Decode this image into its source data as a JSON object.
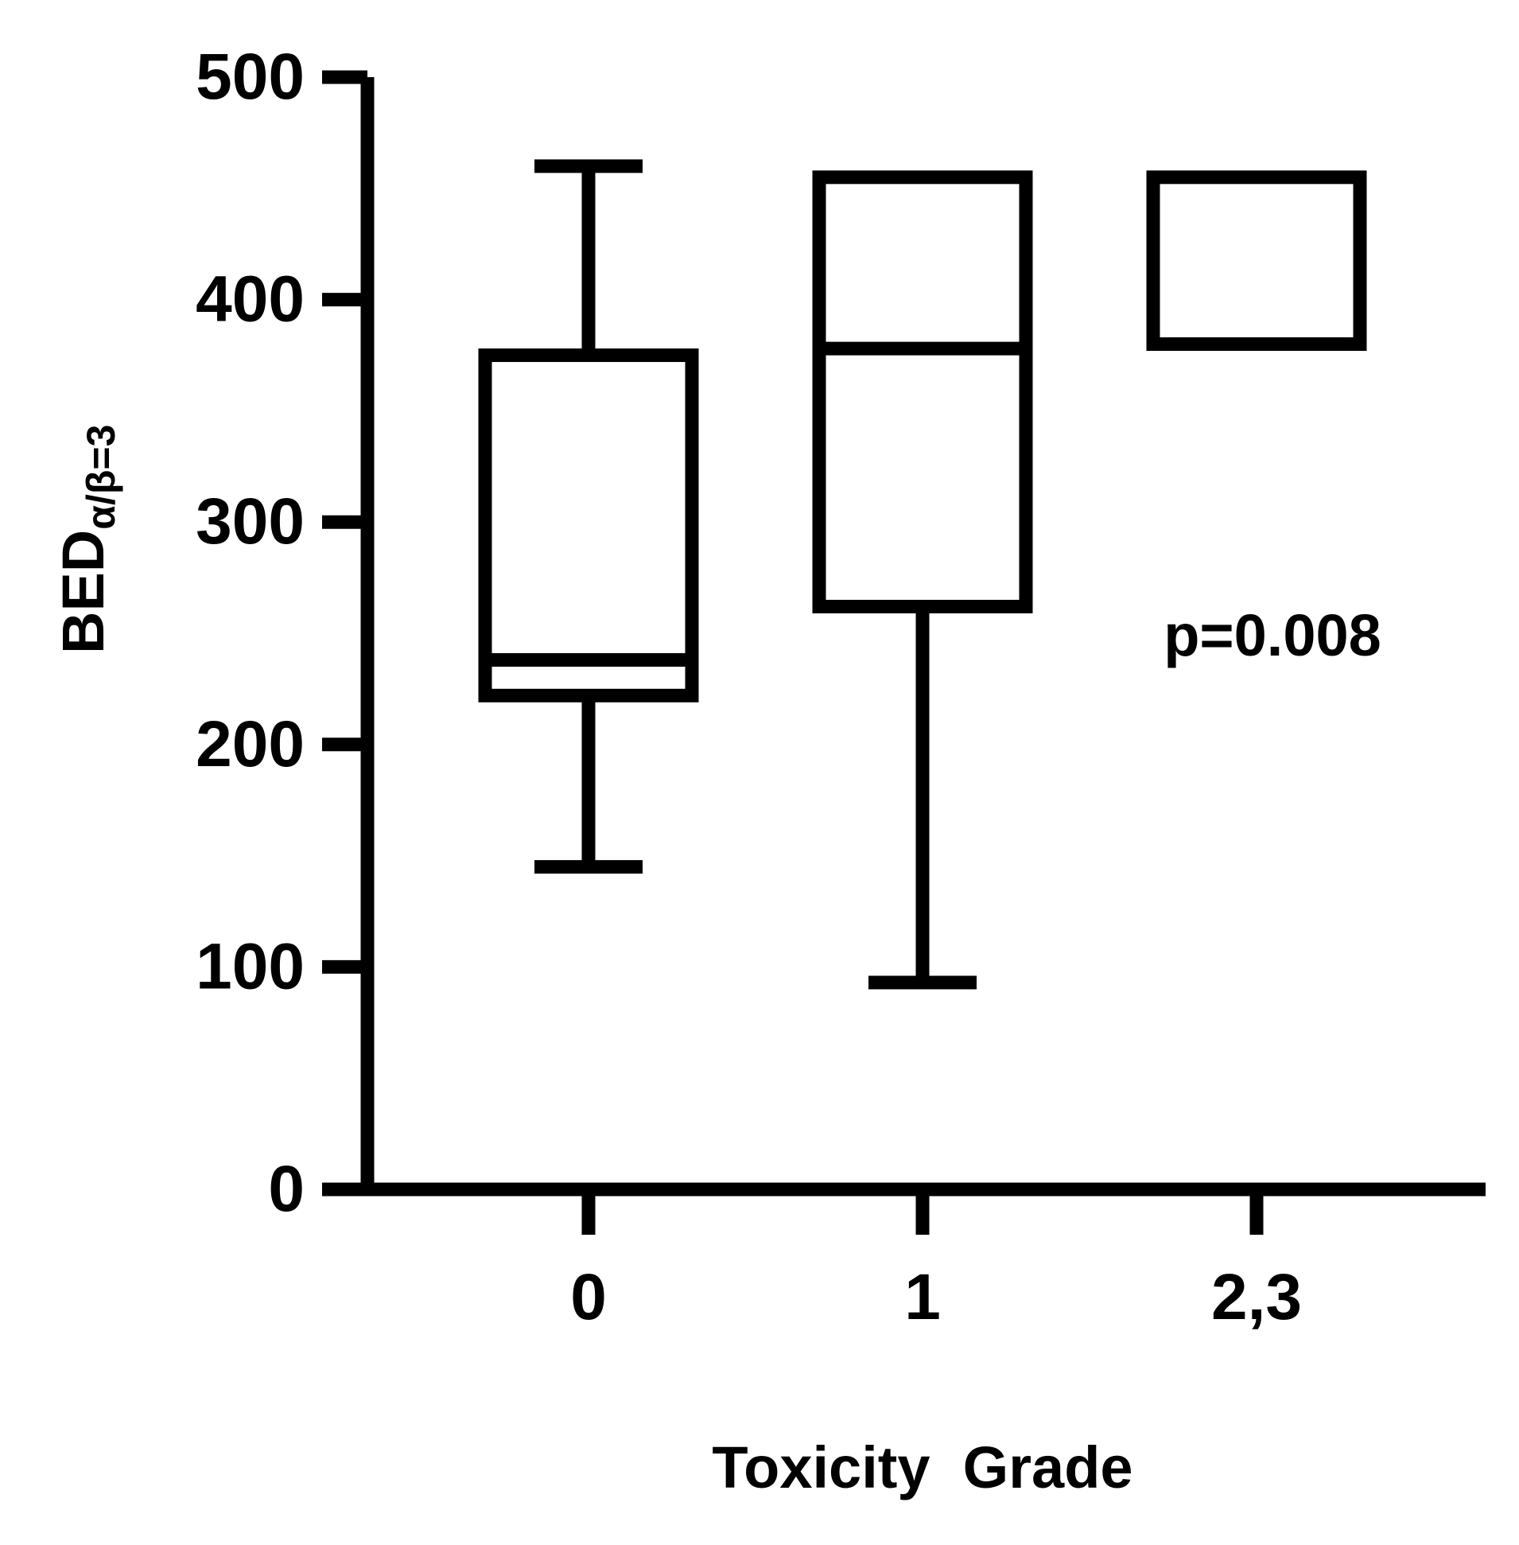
{
  "chart_data": {
    "type": "box",
    "categories": [
      "0",
      "1",
      "2,3"
    ],
    "boxes": [
      {
        "category": "0",
        "min": 145,
        "q1": 222,
        "median": 238,
        "q3": 375,
        "max": 460
      },
      {
        "category": "1",
        "min": 93,
        "q1": 262,
        "median": 378,
        "q3": 455,
        "max": 455
      },
      {
        "category": "2,3",
        "min": 380,
        "q1": 380,
        "median": 380,
        "q3": 455,
        "max": 455
      }
    ],
    "ylabel": {
      "main": "BED",
      "subscript": "α/β=3"
    },
    "xlabel": "Toxicity  Grade",
    "ylim": [
      0,
      500
    ],
    "yticks": [
      0,
      100,
      200,
      300,
      400,
      500
    ],
    "grid": false,
    "annotation": "p=0.008",
    "color": "#000000"
  }
}
